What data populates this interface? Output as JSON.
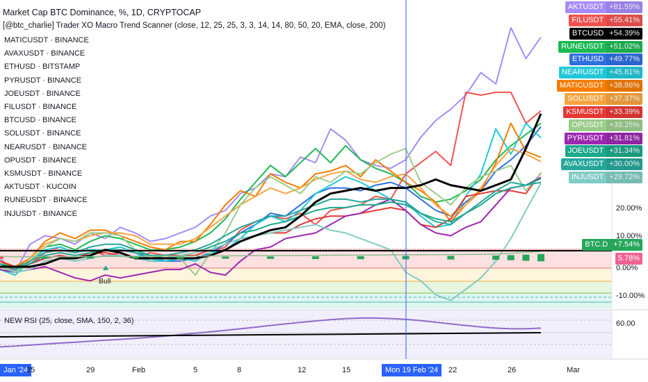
{
  "header": {
    "title": "Market Cap BTC Dominance, %, 1D, CRYPTOCAP",
    "indicator": "[@btc_charlie] Trader XO Macro Trend Scanner (close, 12, 25, 25, 3, 3, 14, 14, 80, 50, 20, EMA, close, 200)"
  },
  "symbols": [
    "MATICUSDT · BINANCE",
    "AVAXUSDT · BINANCE",
    "ETHUSD · BITSTAMP",
    "PYRUSDT · BINANCE",
    "JOEUSDT · BINANCE",
    "FILUSDT · BINANCE",
    "BTCUSD · BINANCE",
    "SOLUSDT · BINANCE",
    "NEARUSDT · BINANCE",
    "OPUSDT · BINANCE",
    "KSMUSDT · BINANCE",
    "AKTUSDT · KUCOIN",
    "RUNEUSDT · BINANCE",
    "INJUSDT · BINANCE"
  ],
  "badges": [
    {
      "name": "AKTUSDT",
      "pct": "+81.59%",
      "color": "#a78bfa"
    },
    {
      "name": "FILUSDT",
      "pct": "+55.41%",
      "color": "#ef5350"
    },
    {
      "name": "BTCUSD",
      "pct": "+54.39%",
      "color": "#000000"
    },
    {
      "name": "RUNEUSDT",
      "pct": "+51.02%",
      "color": "#1db954"
    },
    {
      "name": "ETHUSD",
      "pct": "+49.77%",
      "color": "#2f6fe0"
    },
    {
      "name": "NEARUSDT",
      "pct": "+45.81%",
      "color": "#22c8d8"
    },
    {
      "name": "MATICUSDT",
      "pct": "+38.86%",
      "color": "#f57c00"
    },
    {
      "name": "SOLUSDT",
      "pct": "+37.37%",
      "color": "#f7a440"
    },
    {
      "name": "KSMUSDT",
      "pct": "+33.39%",
      "color": "#e53935"
    },
    {
      "name": "OPUSDT",
      "pct": "+33.25%",
      "color": "#9ccc8c"
    },
    {
      "name": "PYRUSDT",
      "pct": "+31.81%",
      "color": "#9c27b0"
    },
    {
      "name": "JOEUSDT",
      "pct": "+31.34%",
      "color": "#1aa88a"
    },
    {
      "name": "AVAXUSDT",
      "pct": "+30.00%",
      "color": "#26a69a"
    },
    {
      "name": "INJUSDT",
      "pct": "+29.72%",
      "color": "#80cbc4"
    }
  ],
  "axis": {
    "y_labels": [
      "20.00%",
      "10.00%",
      "0.00%",
      "-10.00%"
    ],
    "btcd_badge": {
      "name": "BTC.D",
      "pct": "+7.54%",
      "color": "#26a65b"
    },
    "btcd_value": {
      "text": "5.78%",
      "color": "#f06292"
    },
    "rsi_label": "60.00"
  },
  "rsi": {
    "title": "NEW RSI (25, close, SMA, 150, 2, 36)"
  },
  "annotation": {
    "bull": "Bull"
  },
  "x_axis": {
    "ticks": [
      "Jan '24",
      "25",
      "29",
      "Feb",
      "5",
      "8",
      "12",
      "15",
      "Mon 19 Feb '24",
      "22",
      "26",
      "Mar"
    ],
    "highlight": "Mon 19 Feb '24"
  },
  "chart_data": {
    "type": "line",
    "title": "Market Cap BTC Dominance, %, 1D, CRYPTOCAP",
    "x": [
      "2024-01-23",
      "2024-01-24",
      "2024-01-25",
      "2024-01-26",
      "2024-01-27",
      "2024-01-28",
      "2024-01-29",
      "2024-01-30",
      "2024-01-31",
      "2024-02-01",
      "2024-02-02",
      "2024-02-03",
      "2024-02-04",
      "2024-02-05",
      "2024-02-06",
      "2024-02-07",
      "2024-02-08",
      "2024-02-09",
      "2024-02-10",
      "2024-02-11",
      "2024-02-12",
      "2024-02-13",
      "2024-02-14",
      "2024-02-15",
      "2024-02-16",
      "2024-02-17",
      "2024-02-18",
      "2024-02-19",
      "2024-02-20",
      "2024-02-21",
      "2024-02-22",
      "2024-02-23",
      "2024-02-24",
      "2024-02-25",
      "2024-02-26",
      "2024-02-27",
      "2024-02-28"
    ],
    "ylabel": "%",
    "ylim": [
      -13,
      95
    ],
    "series": [
      {
        "name": "BTCUSD",
        "color": "#000000",
        "values": [
          0,
          0,
          0,
          1,
          3,
          3,
          4,
          6,
          5,
          3,
          3,
          3,
          3,
          3,
          4,
          6,
          9,
          11,
          13,
          14,
          18,
          23,
          26,
          27,
          28,
          27,
          28,
          28,
          29,
          31,
          29,
          28,
          27,
          29,
          31,
          42,
          54.39
        ]
      },
      {
        "name": "AKTUSDT",
        "color": "#a78bfa",
        "values": [
          3,
          -2,
          8,
          11,
          10,
          8,
          12,
          10,
          14,
          12,
          9,
          10,
          12,
          14,
          18,
          20,
          26,
          28,
          33,
          32,
          39,
          37,
          49,
          45,
          38,
          36,
          35,
          38,
          46,
          52,
          56,
          61,
          69,
          65,
          85,
          74,
          81.59
        ]
      },
      {
        "name": "FILUSDT",
        "color": "#ef5350",
        "values": [
          2,
          -1,
          1,
          5,
          7,
          5,
          6,
          4,
          5,
          3,
          5,
          4,
          3,
          3,
          5,
          7,
          13,
          16,
          18,
          17,
          19,
          15,
          20,
          21,
          22,
          25,
          24,
          33,
          37,
          41,
          36,
          62,
          61,
          62,
          62,
          51,
          55.41
        ]
      },
      {
        "name": "RUNEUSDT",
        "color": "#1db954",
        "values": [
          1,
          0,
          2,
          7,
          8,
          6,
          9,
          11,
          10,
          8,
          6,
          6,
          7,
          9,
          12,
          17,
          24,
          30,
          36,
          32,
          37,
          42,
          37,
          43,
          38,
          35,
          33,
          30,
          25,
          23,
          24,
          27,
          31,
          38,
          43,
          47,
          51.02
        ]
      },
      {
        "name": "ETHUSD",
        "color": "#2f6fe0",
        "values": [
          0,
          -1,
          1,
          3,
          4,
          3,
          5,
          6,
          6,
          5,
          3,
          2,
          2,
          3,
          5,
          8,
          12,
          15,
          19,
          18,
          22,
          26,
          28,
          28,
          27,
          29,
          30,
          28,
          24,
          20,
          18,
          23,
          27,
          34,
          38,
          43,
          49.77
        ]
      },
      {
        "name": "NEARUSDT",
        "color": "#22c8d8",
        "values": [
          -1,
          -3,
          2,
          6,
          7,
          5,
          6,
          6,
          7,
          5,
          2,
          2,
          3,
          2,
          5,
          6,
          10,
          15,
          18,
          16,
          20,
          26,
          29,
          32,
          30,
          27,
          24,
          23,
          18,
          14,
          15,
          25,
          33,
          49,
          40,
          51,
          45.81
        ]
      },
      {
        "name": "MATICUSDT",
        "color": "#f57c00",
        "values": [
          2,
          0,
          3,
          9,
          12,
          10,
          13,
          13,
          11,
          9,
          7,
          6,
          9,
          9,
          15,
          22,
          27,
          25,
          33,
          30,
          28,
          33,
          34,
          36,
          32,
          38,
          34,
          30,
          27,
          23,
          16,
          22,
          27,
          37,
          51,
          41,
          38.86
        ]
      },
      {
        "name": "SOLUSDT",
        "color": "#f7a440",
        "values": [
          1,
          -2,
          3,
          8,
          10,
          9,
          11,
          12,
          12,
          11,
          8,
          8,
          8,
          10,
          14,
          18,
          22,
          25,
          28,
          26,
          28,
          31,
          33,
          34,
          31,
          30,
          32,
          33,
          28,
          22,
          18,
          22,
          28,
          36,
          42,
          40,
          37.37
        ]
      },
      {
        "name": "KSMUSDT",
        "color": "#e53935",
        "values": [
          2,
          0,
          1,
          3,
          4,
          3,
          5,
          5,
          4,
          3,
          3,
          4,
          4,
          4,
          6,
          8,
          10,
          11,
          12,
          12,
          15,
          17,
          18,
          18,
          19,
          20,
          21,
          20,
          15,
          14,
          17,
          25,
          26,
          27,
          27,
          26,
          33.39
        ]
      },
      {
        "name": "OPUSDT",
        "color": "#9ccc8c",
        "values": [
          0,
          -2,
          2,
          7,
          10,
          9,
          12,
          12,
          11,
          6,
          3,
          4,
          3,
          -3,
          5,
          12,
          22,
          28,
          32,
          29,
          26,
          32,
          30,
          34,
          33,
          37,
          40,
          42,
          30,
          26,
          22,
          28,
          32,
          34,
          36,
          27,
          33.25
        ]
      },
      {
        "name": "PYRUSDT",
        "color": "#9c27b0",
        "values": [
          -1,
          -2,
          -1,
          0,
          -2,
          -4,
          -5,
          -3,
          -4,
          -3,
          -2,
          -1,
          -1,
          1,
          -2,
          -3,
          2,
          6,
          7,
          10,
          11,
          12,
          15,
          18,
          19,
          22,
          24,
          20,
          15,
          12,
          11,
          14,
          16,
          22,
          28,
          29,
          31.81
        ]
      },
      {
        "name": "JOEUSDT",
        "color": "#1aa88a",
        "values": [
          1,
          -1,
          1,
          4,
          5,
          4,
          5,
          6,
          6,
          5,
          4,
          3,
          4,
          5,
          7,
          9,
          12,
          13,
          15,
          16,
          18,
          20,
          21,
          21,
          22,
          22,
          23,
          22,
          19,
          17,
          16,
          19,
          22,
          26,
          28,
          29,
          31.34
        ]
      },
      {
        "name": "AVAXUSDT",
        "color": "#26a69a",
        "values": [
          1,
          -1,
          2,
          5,
          6,
          5,
          7,
          8,
          8,
          6,
          4,
          4,
          5,
          6,
          8,
          11,
          14,
          16,
          18,
          18,
          20,
          22,
          24,
          24,
          23,
          24,
          24,
          23,
          19,
          16,
          15,
          19,
          23,
          27,
          30,
          29,
          30.0
        ]
      },
      {
        "name": "INJUSDT",
        "color": "#80cbc4",
        "values": [
          0,
          -2,
          -1,
          2,
          3,
          2,
          3,
          4,
          4,
          3,
          2,
          3,
          4,
          5,
          6,
          8,
          10,
          11,
          12,
          13,
          14,
          15,
          13,
          12,
          10,
          8,
          6,
          -2,
          -5,
          -10,
          -12,
          -8,
          -4,
          2,
          10,
          20,
          29.72
        ]
      },
      {
        "name": "BTC.D",
        "color": "#26a65b",
        "values": [
          1.5,
          1.2,
          1.0,
          1.1,
          1.2,
          1.1,
          1.3,
          1.4,
          1.5,
          1.6,
          1.7,
          1.8,
          1.9,
          2.0,
          2.1,
          2.2,
          2.3,
          2.4,
          2.5,
          2.6,
          2.7,
          2.8,
          2.9,
          3.0,
          3.1,
          3.2,
          3.3,
          3.4,
          3.5,
          3.6,
          3.7,
          3.8,
          4.0,
          4.4,
          5.2,
          6.4,
          7.54
        ]
      }
    ],
    "rsi_series": {
      "name": "NEW RSI",
      "values": [
        44,
        44.6,
        45.3,
        46,
        46.7,
        47.3,
        48,
        48.7,
        49.3,
        50,
        50.8,
        51.6,
        52.6,
        53.6,
        54.6,
        55.6,
        56.7,
        57.8,
        59,
        60.1,
        61.2,
        62.2,
        63.1,
        63.8,
        64.2,
        64.2,
        63.9,
        63.3,
        62.4,
        61.3,
        60.1,
        59,
        58,
        57.2,
        56.7,
        56.7,
        57.2
      ]
    },
    "rsi_ylim": [
      36,
      70
    ]
  }
}
